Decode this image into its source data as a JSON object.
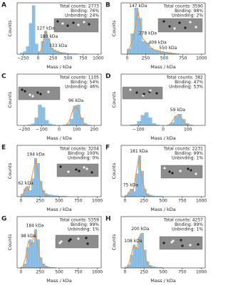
{
  "chart_data": [
    {
      "type": "histogram",
      "label": "A",
      "xlabel": "Mass / kDa",
      "ylabel": "Counts",
      "stats": [
        "Total counts: 2773",
        "Binding: 76%",
        "Unbinding: 24%"
      ],
      "xlim": [
        -350,
        1050
      ],
      "xticks": [
        {
          "value": -250,
          "label": "−250"
        },
        0,
        250,
        500,
        750,
        1000
      ],
      "ylim": [
        0,
        100
      ],
      "bins": [
        -300,
        -250,
        -200,
        -150,
        -100,
        -50,
        0,
        50,
        100,
        150,
        200,
        250,
        300,
        350,
        400,
        450,
        500,
        550,
        600,
        650,
        700
      ],
      "values": [
        2,
        5,
        15,
        60,
        95,
        20,
        5,
        25,
        45,
        30,
        12,
        8,
        6,
        4,
        3,
        2,
        1,
        1,
        1,
        0
      ],
      "color": "#8fbfe3",
      "fit": {
        "color": "#f28e2b",
        "x": [
          0,
          60,
          100,
          127,
          160,
          180,
          220,
          280,
          333,
          400
        ],
        "values": [
          0,
          10,
          35,
          45,
          32,
          30,
          12,
          7,
          5,
          1
        ]
      },
      "annotations": [
        {
          "text": "127 kDa",
          "x": 127,
          "y": 50
        },
        {
          "text": "180 kDa",
          "x": 180,
          "y": 34
        },
        {
          "text": "333 kDa",
          "x": 333,
          "y": 16
        }
      ]
    },
    {
      "type": "histogram",
      "label": "B",
      "xlabel": "Mass / kDa",
      "ylabel": "Counts",
      "stats": [
        "Total counts: 3590",
        "Binding: 98%",
        "Unbinding: 2%"
      ],
      "xlim": [
        -80,
        1050
      ],
      "xticks": [
        0,
        250,
        500,
        750,
        1000
      ],
      "ylim": [
        0,
        100
      ],
      "bins": [
        0,
        50,
        100,
        150,
        200,
        250,
        300,
        350,
        400,
        450,
        500,
        550,
        600,
        650,
        700
      ],
      "values": [
        10,
        40,
        90,
        70,
        25,
        22,
        12,
        8,
        7,
        5,
        4,
        3,
        2,
        1
      ],
      "color": "#8fbfe3",
      "fit": {
        "color": "#f28e2b",
        "x": [
          0,
          80,
          147,
          210,
          278,
          340,
          409,
          480,
          550,
          650
        ],
        "values": [
          0,
          30,
          85,
          30,
          20,
          10,
          7,
          4,
          3,
          0
        ]
      },
      "annotations": [
        {
          "text": "147 kDa",
          "x": 147,
          "y": 94
        },
        {
          "text": "278 kDa",
          "x": 278,
          "y": 40
        },
        {
          "text": "409 kDa",
          "x": 409,
          "y": 22
        },
        {
          "text": "550 kDa",
          "x": 550,
          "y": 12
        }
      ]
    },
    {
      "type": "histogram",
      "label": "C",
      "xlabel": "Mass / kDa",
      "ylabel": "Counts",
      "stats": [
        "Total counts: 1105",
        "Binding: 54%",
        "Unbinding: 46%"
      ],
      "xlim": [
        -240,
        240
      ],
      "xticks": [
        {
          "value": -200,
          "label": "−200"
        },
        {
          "value": -100,
          "label": "−100"
        },
        0,
        100,
        200
      ],
      "ylim": [
        0,
        100
      ],
      "bins": [
        -200,
        -180,
        -160,
        -140,
        -120,
        -100,
        -80,
        -60,
        -40,
        -20,
        0,
        20,
        40,
        60,
        80,
        100,
        120,
        140,
        160,
        180,
        200
      ],
      "values": [
        0,
        1,
        3,
        15,
        40,
        35,
        10,
        3,
        1,
        0,
        0,
        1,
        3,
        12,
        38,
        40,
        15,
        4,
        1,
        0
      ],
      "color": "#8fbfe3",
      "fit": {
        "color": "#f28e2b",
        "x": [
          40,
          60,
          80,
          96,
          110,
          130,
          150
        ],
        "values": [
          0,
          10,
          32,
          38,
          30,
          10,
          0
        ]
      },
      "annotations": [
        {
          "text": "96 kDa",
          "x": 96,
          "y": 48
        }
      ]
    },
    {
      "type": "histogram",
      "label": "D",
      "xlabel": "Mass / kDa",
      "ylabel": "Counts",
      "stats": [
        "Total counts: 382",
        "Binding: 47%",
        "Unbinding: 53%"
      ],
      "xlim": [
        -170,
        170
      ],
      "xticks": [
        {
          "value": -100,
          "label": "−100"
        },
        0,
        100
      ],
      "ylim": [
        0,
        100
      ],
      "bins": [
        -150,
        -135,
        -120,
        -105,
        -90,
        -75,
        -60,
        -45,
        -30,
        -15,
        0,
        15,
        30,
        45,
        60,
        75,
        90,
        105,
        120,
        135,
        150
      ],
      "values": [
        0,
        1,
        2,
        8,
        20,
        25,
        15,
        4,
        1,
        0,
        0,
        1,
        5,
        18,
        22,
        12,
        4,
        1,
        0,
        0
      ],
      "color": "#8fbfe3",
      "fit": {
        "color": "#f28e2b",
        "x": [
          20,
          35,
          50,
          59,
          70,
          85,
          100
        ],
        "values": [
          0,
          6,
          18,
          21,
          17,
          6,
          0
        ]
      },
      "annotations": [
        {
          "text": "59 kDa",
          "x": 59,
          "y": 30
        }
      ]
    },
    {
      "type": "histogram",
      "label": "E",
      "xlabel": "Mass / kDa",
      "ylabel": "Counts",
      "stats": [
        "Total counts: 3204",
        "Binding: 100%",
        "Unbinding: 0%"
      ],
      "xlim": [
        -50,
        1050
      ],
      "xticks": [
        0,
        250,
        500,
        750,
        1000
      ],
      "ylim": [
        0,
        100
      ],
      "bins": [
        0,
        35,
        70,
        105,
        140,
        175,
        210,
        245,
        280,
        315,
        350,
        385,
        420,
        455,
        490,
        525,
        560,
        595,
        630,
        665,
        700
      ],
      "values": [
        5,
        15,
        20,
        12,
        35,
        75,
        65,
        30,
        12,
        6,
        4,
        3,
        2,
        2,
        1,
        1,
        1,
        0,
        0,
        0
      ],
      "color": "#8fbfe3",
      "fit": {
        "color": "#f28e2b",
        "x": [
          20,
          62,
          100,
          130,
          194,
          250,
          300,
          350
        ],
        "values": [
          2,
          18,
          12,
          30,
          72,
          30,
          6,
          0
        ]
      },
      "annotations": [
        {
          "text": "194 kDa",
          "x": 194,
          "y": 82
        },
        {
          "text": "62 kDa",
          "x": 62,
          "y": 26
        }
      ]
    },
    {
      "type": "histogram",
      "label": "F",
      "xlabel": "Mass / kDa",
      "ylabel": "Counts",
      "stats": [
        "Total counts: 2231",
        "Binding: 99%",
        "Unbinding: 1%"
      ],
      "xlim": [
        -50,
        1050
      ],
      "xticks": [
        0,
        250,
        500,
        750,
        1000
      ],
      "ylim": [
        0,
        100
      ],
      "bins": [
        0,
        35,
        70,
        105,
        140,
        175,
        210,
        245,
        280,
        315,
        350,
        385,
        420,
        455,
        490,
        525,
        560,
        595,
        630,
        665,
        700
      ],
      "values": [
        3,
        8,
        15,
        10,
        45,
        80,
        50,
        15,
        6,
        3,
        2,
        1,
        1,
        1,
        0,
        0,
        0,
        0,
        0,
        0
      ],
      "color": "#8fbfe3",
      "fit": {
        "color": "#f28e2b",
        "x": [
          20,
          75,
          110,
          140,
          181,
          230,
          280,
          330
        ],
        "values": [
          1,
          14,
          10,
          40,
          78,
          30,
          5,
          0
        ]
      },
      "annotations": [
        {
          "text": "181 kDa",
          "x": 181,
          "y": 88
        },
        {
          "text": "75 kDa",
          "x": 75,
          "y": 22
        }
      ]
    },
    {
      "type": "histogram",
      "label": "G",
      "xlabel": "Mass / kDa",
      "ylabel": "Counts",
      "stats": [
        "Total counts: 5359",
        "Binding: 99%",
        "Unbinding: 1%"
      ],
      "xlim": [
        -50,
        1050
      ],
      "xticks": [
        0,
        250,
        500,
        750,
        1000
      ],
      "ylim": [
        0,
        100
      ],
      "bins": [
        0,
        35,
        70,
        105,
        140,
        175,
        210,
        245,
        280,
        315,
        350,
        385,
        420,
        455,
        490,
        525,
        560,
        595,
        630,
        665,
        700
      ],
      "values": [
        2,
        8,
        40,
        55,
        50,
        75,
        55,
        20,
        8,
        4,
        2,
        1,
        1,
        0,
        0,
        0,
        0,
        0,
        0,
        0
      ],
      "color": "#8fbfe3",
      "fit": {
        "color": "#f28e2b",
        "x": [
          20,
          60,
          98,
          140,
          184,
          240,
          290,
          340
        ],
        "values": [
          0,
          20,
          52,
          45,
          72,
          25,
          5,
          0
        ]
      },
      "annotations": [
        {
          "text": "184 kDa",
          "x": 184,
          "y": 82
        },
        {
          "text": "98 kDa",
          "x": 98,
          "y": 62
        }
      ]
    },
    {
      "type": "histogram",
      "label": "H",
      "xlabel": "Mass / kDa",
      "ylabel": "Counts",
      "stats": [
        "Total counts: 4257",
        "Binding: 99%",
        "Unbinding: 1%"
      ],
      "xlim": [
        -50,
        1050
      ],
      "xticks": [
        0,
        250,
        500,
        750,
        1000
      ],
      "ylim": [
        0,
        100
      ],
      "bins": [
        0,
        35,
        70,
        105,
        140,
        175,
        210,
        245,
        280,
        315,
        350,
        385,
        420,
        455,
        490,
        525,
        560,
        595,
        630,
        665,
        700
      ],
      "values": [
        2,
        6,
        25,
        45,
        40,
        60,
        68,
        35,
        12,
        5,
        3,
        2,
        1,
        1,
        0,
        0,
        0,
        0,
        0,
        0
      ],
      "color": "#8fbfe3",
      "fit": {
        "color": "#f28e2b",
        "x": [
          20,
          60,
          108,
          150,
          200,
          250,
          300,
          350
        ],
        "values": [
          0,
          12,
          42,
          38,
          66,
          30,
          6,
          0
        ]
      },
      "annotations": [
        {
          "text": "200 kDa",
          "x": 200,
          "y": 76
        },
        {
          "text": "108 kDa",
          "x": 108,
          "y": 52
        }
      ]
    }
  ]
}
